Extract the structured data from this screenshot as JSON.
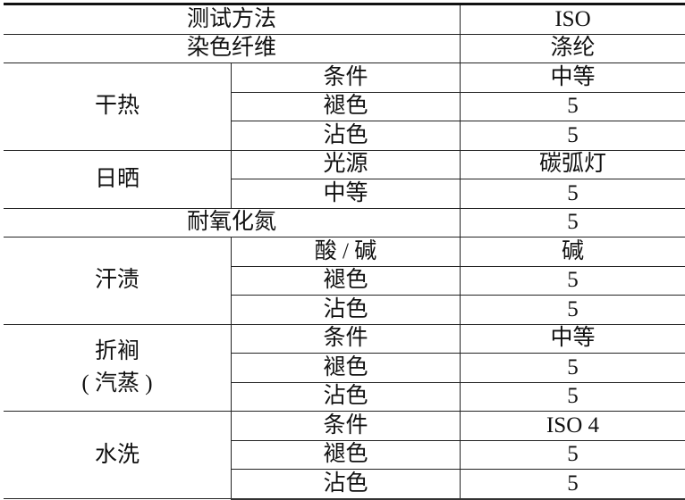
{
  "table": {
    "header": {
      "label": "测试方法",
      "value": "ISO"
    },
    "fiber": {
      "label": "染色纤维",
      "value": "涤纶"
    },
    "dry_heat": {
      "label": "干热",
      "rows": [
        {
          "label": "条件",
          "value": "中等"
        },
        {
          "label": "褪色",
          "value": "5"
        },
        {
          "label": "沾色",
          "value": "5"
        }
      ]
    },
    "sunlight": {
      "label": "日晒",
      "rows": [
        {
          "label": "光源",
          "value": "碳弧灯"
        },
        {
          "label": "中等",
          "value": "5"
        }
      ]
    },
    "nitrogen_oxide": {
      "label": "耐氧化氮",
      "value": "5"
    },
    "perspiration": {
      "label": "汗渍",
      "rows": [
        {
          "label": "酸 / 碱",
          "value": "碱"
        },
        {
          "label": "褪色",
          "value": "5"
        },
        {
          "label": "沾色",
          "value": "5"
        }
      ]
    },
    "pleating": {
      "label": "折裥",
      "label2": "( 汽蒸 )",
      "rows": [
        {
          "label": "条件",
          "value": "中等"
        },
        {
          "label": "褪色",
          "value": "5"
        },
        {
          "label": "沾色",
          "value": "5"
        }
      ]
    },
    "washing": {
      "label": "水洗",
      "rows": [
        {
          "label": "条件",
          "value": "ISO 4"
        },
        {
          "label": "褪色",
          "value": "5"
        },
        {
          "label": "沾色",
          "value": "5"
        }
      ]
    }
  }
}
